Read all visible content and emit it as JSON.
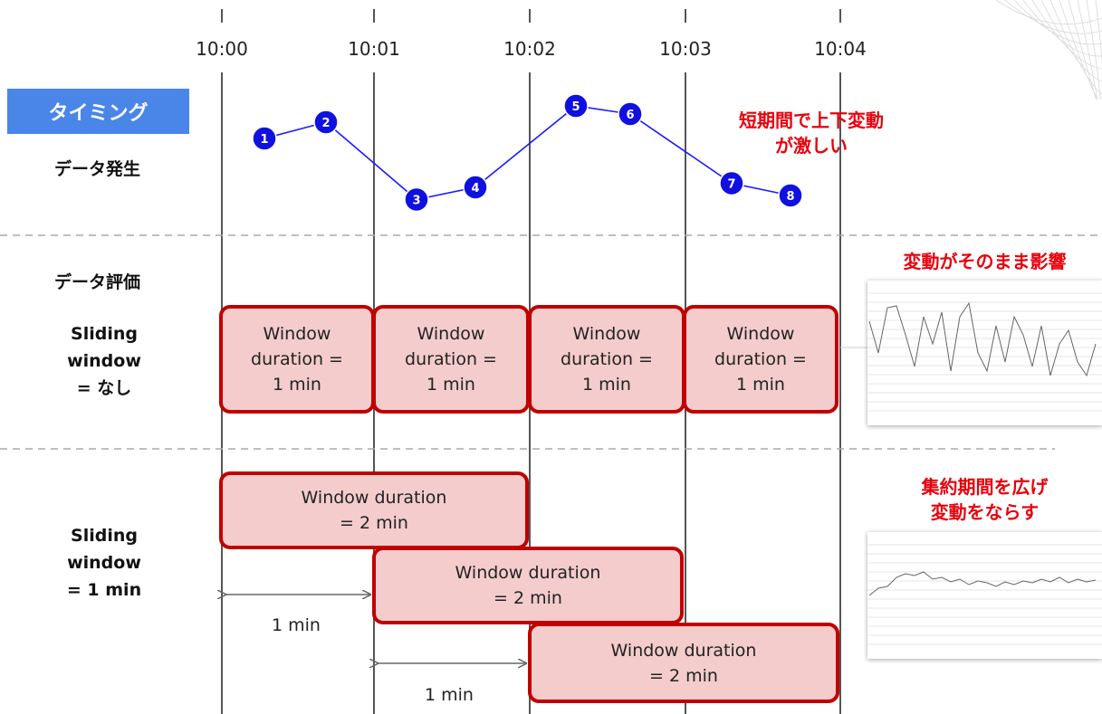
{
  "timeline": {
    "ticks": [
      "10:00",
      "10:01",
      "10:02",
      "10:03",
      "10:04"
    ]
  },
  "badge": {
    "label": "タイミング"
  },
  "rows": {
    "data_generation": "データ発生",
    "data_evaluation": "データ評価",
    "sliding_none_line1": "Sliding",
    "sliding_none_line2": "window",
    "sliding_none_line3": "= なし",
    "sliding_1min_line1": "Sliding",
    "sliding_1min_line2": "window",
    "sliding_1min_line3": "= 1 min"
  },
  "data_points": {
    "labels": [
      "1",
      "2",
      "3",
      "4",
      "5",
      "6",
      "7",
      "8"
    ],
    "values": [
      0.8,
      1.0,
      0.05,
      0.2,
      1.2,
      1.1,
      0.25,
      0.1
    ]
  },
  "notes": {
    "fluctuation_line1": "短期間で上下変動",
    "fluctuation_line2": "が激しい",
    "direct_effect": "変動がそのまま影響",
    "smooth_line1": "集約期間を広げ",
    "smooth_line2": "変動をならす"
  },
  "windows_none": [
    {
      "line1": "Window",
      "line2": "duration =",
      "line3": "1 min"
    },
    {
      "line1": "Window",
      "line2": "duration =",
      "line3": "1 min"
    },
    {
      "line1": "Window",
      "line2": "duration =",
      "line3": "1 min"
    },
    {
      "line1": "Window",
      "line2": "duration =",
      "line3": "1 min"
    }
  ],
  "windows_sliding": [
    {
      "line1": "Window duration",
      "line2": "= 2 min"
    },
    {
      "line1": "Window duration",
      "line2": "= 2 min"
    },
    {
      "line1": "Window duration",
      "line2": "= 2 min"
    }
  ],
  "slide_intervals": [
    "1 min",
    "1 min"
  ],
  "colors": {
    "badge": "#4a86e8",
    "window_fill": "#f4cccc",
    "window_border": "#c00000",
    "point_fill": "#1010e0",
    "point_line": "#1a1aff",
    "note_red": "#e8000b"
  }
}
